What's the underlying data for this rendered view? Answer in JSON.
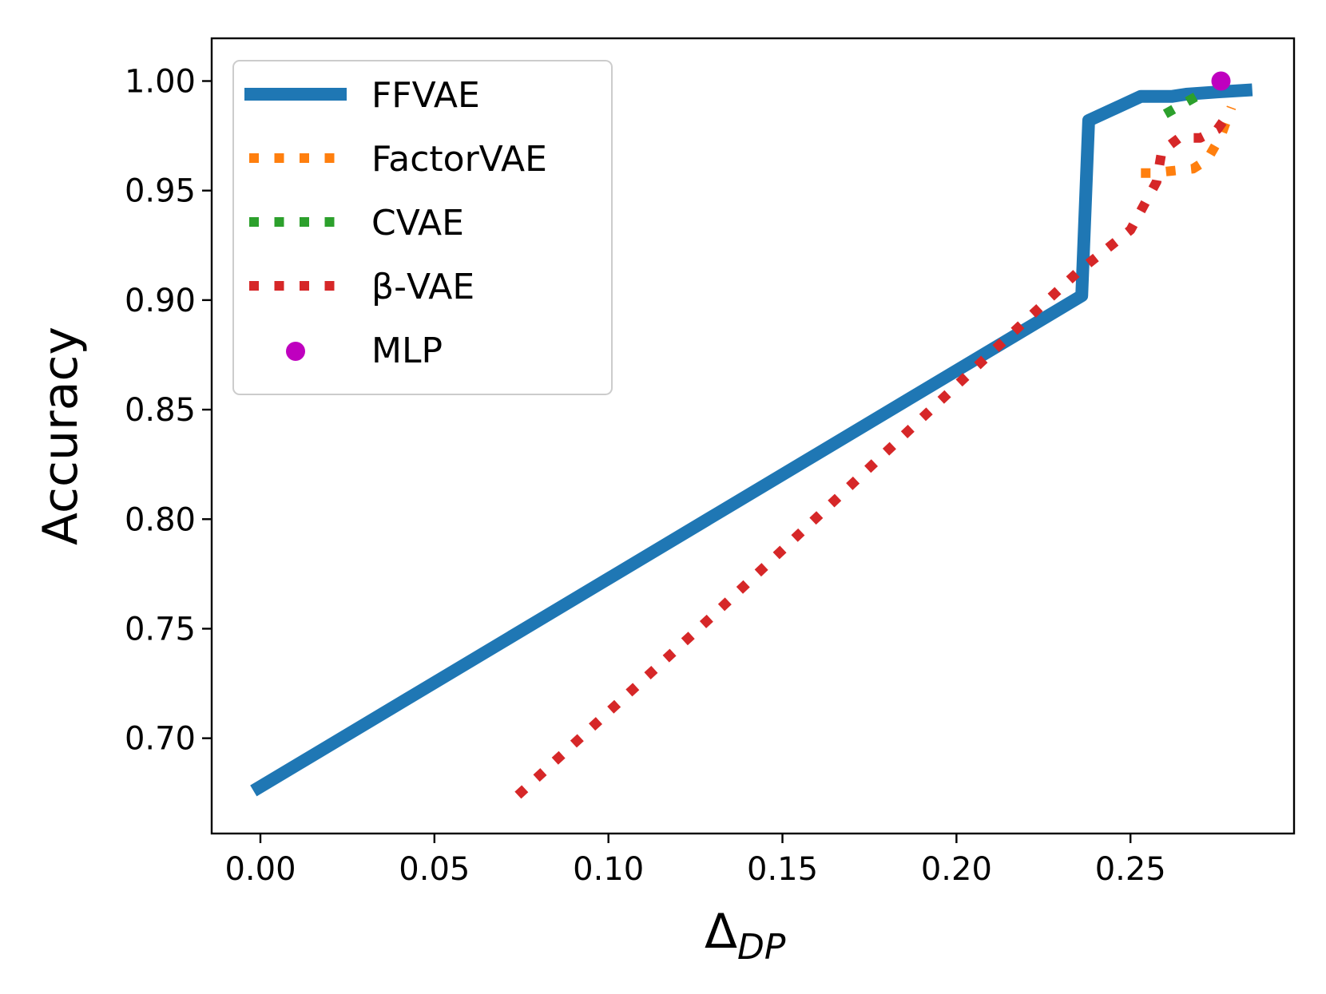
{
  "chart_data": {
    "type": "line",
    "title": "",
    "xlabel": {
      "symbol": "Δ",
      "subscript": "DP"
    },
    "ylabel": "Accuracy",
    "xlim": [
      -0.014,
      0.297
    ],
    "ylim": [
      0.6565,
      1.0195
    ],
    "xticks": [
      "0.00",
      "0.05",
      "0.10",
      "0.15",
      "0.20",
      "0.25"
    ],
    "yticks": [
      "0.70",
      "0.75",
      "0.80",
      "0.85",
      "0.90",
      "0.95",
      "1.00"
    ],
    "grid": false,
    "legend_position": "upper-left",
    "series": [
      {
        "name": "FFVAE",
        "style": "solid",
        "color": "#1f77b4",
        "x": [
          -0.002,
          0.236,
          0.238,
          0.253,
          0.262,
          0.266,
          0.275,
          0.285
        ],
        "y": [
          0.676,
          0.902,
          0.982,
          0.993,
          0.993,
          0.994,
          0.995,
          0.996
        ]
      },
      {
        "name": "FactorVAE",
        "style": "dotted",
        "color": "#ff7f0e",
        "x": [
          0.253,
          0.256,
          0.262,
          0.268,
          0.272,
          0.276,
          0.279
        ],
        "y": [
          0.958,
          0.958,
          0.959,
          0.96,
          0.964,
          0.975,
          0.988
        ]
      },
      {
        "name": "CVAE",
        "style": "dotted",
        "color": "#2ca02c",
        "x": [
          0.26,
          0.269
        ],
        "y": [
          0.985,
          0.993
        ]
      },
      {
        "name": "β-VAE",
        "style": "dotted",
        "color": "#d62728",
        "x": [
          0.074,
          0.1,
          0.13,
          0.16,
          0.19,
          0.21,
          0.235,
          0.25,
          0.2575,
          0.259,
          0.264,
          0.27,
          0.275,
          0.279
        ],
        "y": [
          0.674,
          0.712,
          0.756,
          0.801,
          0.846,
          0.876,
          0.913,
          0.932,
          0.954,
          0.968,
          0.974,
          0.974,
          0.978,
          0.987
        ]
      },
      {
        "name": "MLP",
        "style": "marker",
        "color": "#bf00bf",
        "x": [
          0.276
        ],
        "y": [
          1.0
        ]
      }
    ]
  }
}
